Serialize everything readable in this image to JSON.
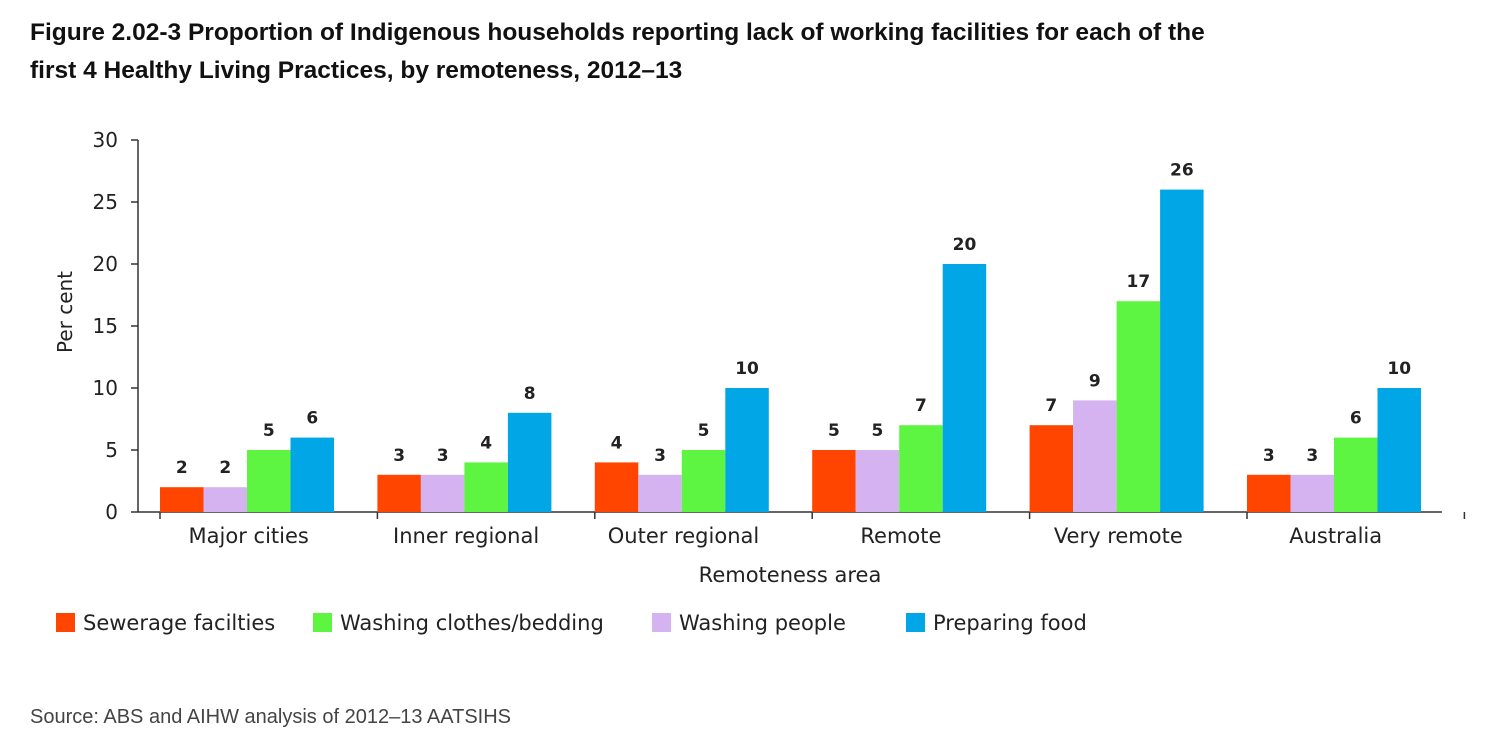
{
  "figure": {
    "title_line1": "Figure 2.02-3 Proportion of Indigenous households reporting lack of working facilities for each of the",
    "title_line2": "first 4 Healthy Living Practices, by remoteness, 2012–13",
    "source": "Source: ABS and AIHW analysis of 2012–13 AATSIHS"
  },
  "chart_data": {
    "type": "bar",
    "xlabel": "Remoteness area",
    "ylabel": "Per cent",
    "ylim": [
      0,
      30
    ],
    "yticks": [
      0,
      5,
      10,
      15,
      20,
      25,
      30
    ],
    "grid": false,
    "legend_position": "bottom-left",
    "categories": [
      "Major cities",
      "Inner regional",
      "Outer regional",
      "Remote",
      "Very remote",
      "Australia"
    ],
    "series": [
      {
        "name": "Sewerage facilties",
        "color": "#ff4500",
        "values": [
          2,
          3,
          4,
          5,
          7,
          3
        ]
      },
      {
        "name": "Washing people",
        "color": "#d4b3f0",
        "values": [
          2,
          3,
          3,
          5,
          9,
          3
        ]
      },
      {
        "name": "Washing clothes/bedding",
        "color": "#5df542",
        "values": [
          5,
          4,
          5,
          7,
          17,
          6
        ]
      },
      {
        "name": "Preparing food",
        "color": "#00a6e6",
        "values": [
          6,
          8,
          10,
          20,
          26,
          10
        ]
      }
    ],
    "legend_order": [
      "Sewerage facilties",
      "Washing clothes/bedding",
      "Washing people",
      "Preparing food"
    ]
  }
}
